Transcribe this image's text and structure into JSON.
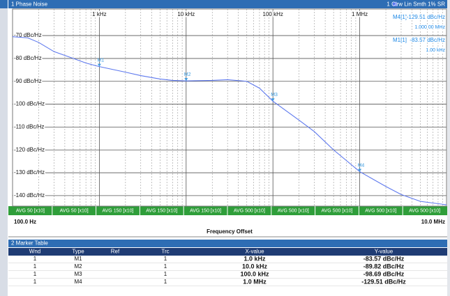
{
  "chart_data": {
    "type": "line",
    "title": "1 Phase Noise",
    "trace_info": "1 Clrw Lin Smth 1% SR",
    "x_label": "Frequency Offset",
    "x_start_label": "100.0 Hz",
    "x_stop_label": "10.0 MHz",
    "log_x": true,
    "grid": true,
    "xlim": [
      100,
      10000000
    ],
    "xticks": [
      {
        "value": 1000,
        "label": "1 kHz"
      },
      {
        "value": 10000,
        "label": "10 kHz"
      },
      {
        "value": 100000,
        "label": "100 kHz"
      },
      {
        "value": 1000000,
        "label": "1 MHz"
      }
    ],
    "ylim": [
      -144.6,
      -58.4
    ],
    "yticks": [
      {
        "value": -70,
        "label": "-70 dBc/Hz"
      },
      {
        "value": -80,
        "label": "-80 dBc/Hz"
      },
      {
        "value": -90,
        "label": "-90 dBc/Hz"
      },
      {
        "value": -100,
        "label": "-100 dBc/Hz"
      },
      {
        "value": -110,
        "label": "-110 dBc/Hz"
      },
      {
        "value": -120,
        "label": "-120 dBc/Hz"
      },
      {
        "value": -130,
        "label": "-130 dBc/Hz"
      },
      {
        "value": -140,
        "label": "-140 dBc/Hz"
      }
    ],
    "x": [
      100,
      150,
      200,
      300,
      500,
      700,
      1000,
      2000,
      3000,
      5000,
      7000,
      10000,
      20000,
      30000,
      50000,
      70000,
      100000,
      200000,
      300000,
      500000,
      1000000,
      2000000,
      3000000,
      5000000,
      10000000
    ],
    "series": [
      {
        "color": "#5d78ee",
        "values": [
          -70.5,
          -71,
          -73,
          -77,
          -80,
          -82,
          -83.57,
          -86,
          -87.5,
          -89,
          -89.6,
          -89.82,
          -89.6,
          -89.3,
          -90,
          -93,
          -98.69,
          -107,
          -112,
          -120,
          -129.51,
          -136,
          -139.5,
          -142.5,
          -144
        ]
      }
    ],
    "markers": [
      {
        "name": "M1",
        "x": 1000,
        "y": -83.57
      },
      {
        "name": "M2",
        "x": 10000,
        "y": -89.82
      },
      {
        "name": "M3",
        "x": 100000,
        "y": -98.69
      },
      {
        "name": "M4",
        "x": 1000000,
        "y": -129.51
      }
    ],
    "marker_info": [
      {
        "name": "M4[1]",
        "value": "-129.51 dBc/Hz",
        "freq": "1.000 00 MHz"
      },
      {
        "name": "M1[1]",
        "value": "-83.57 dBc/Hz",
        "freq": "1.00 kHz"
      }
    ],
    "avg_labels": [
      "AVG 50 [x10]",
      "AVG 50 [x10]",
      "AVG 150 [x10]",
      "AVG 150 [x10]",
      "AVG 150 [x10]",
      "AVG 500 [x10]",
      "AVG 500 [x10]",
      "AVG 500 [x10]",
      "AVG 500 [x10]",
      "AVG 500 [x10]"
    ]
  },
  "marker_table": {
    "title": "2 Marker Table",
    "columns": [
      "Wnd",
      "Type",
      "Ref",
      "Trc",
      "X-value",
      "Y-value"
    ],
    "rows": [
      [
        "1",
        "M1",
        "",
        "1",
        "1.0 kHz",
        "-83.57 dBc/Hz"
      ],
      [
        "1",
        "M2",
        "",
        "1",
        "10.0 kHz",
        "-89.82 dBc/Hz"
      ],
      [
        "1",
        "M3",
        "",
        "1",
        "100.0 kHz",
        "-98.69 dBc/Hz"
      ],
      [
        "1",
        "M4",
        "",
        "1",
        "1.0 MHz",
        "-129.51 dBc/Hz"
      ]
    ]
  }
}
